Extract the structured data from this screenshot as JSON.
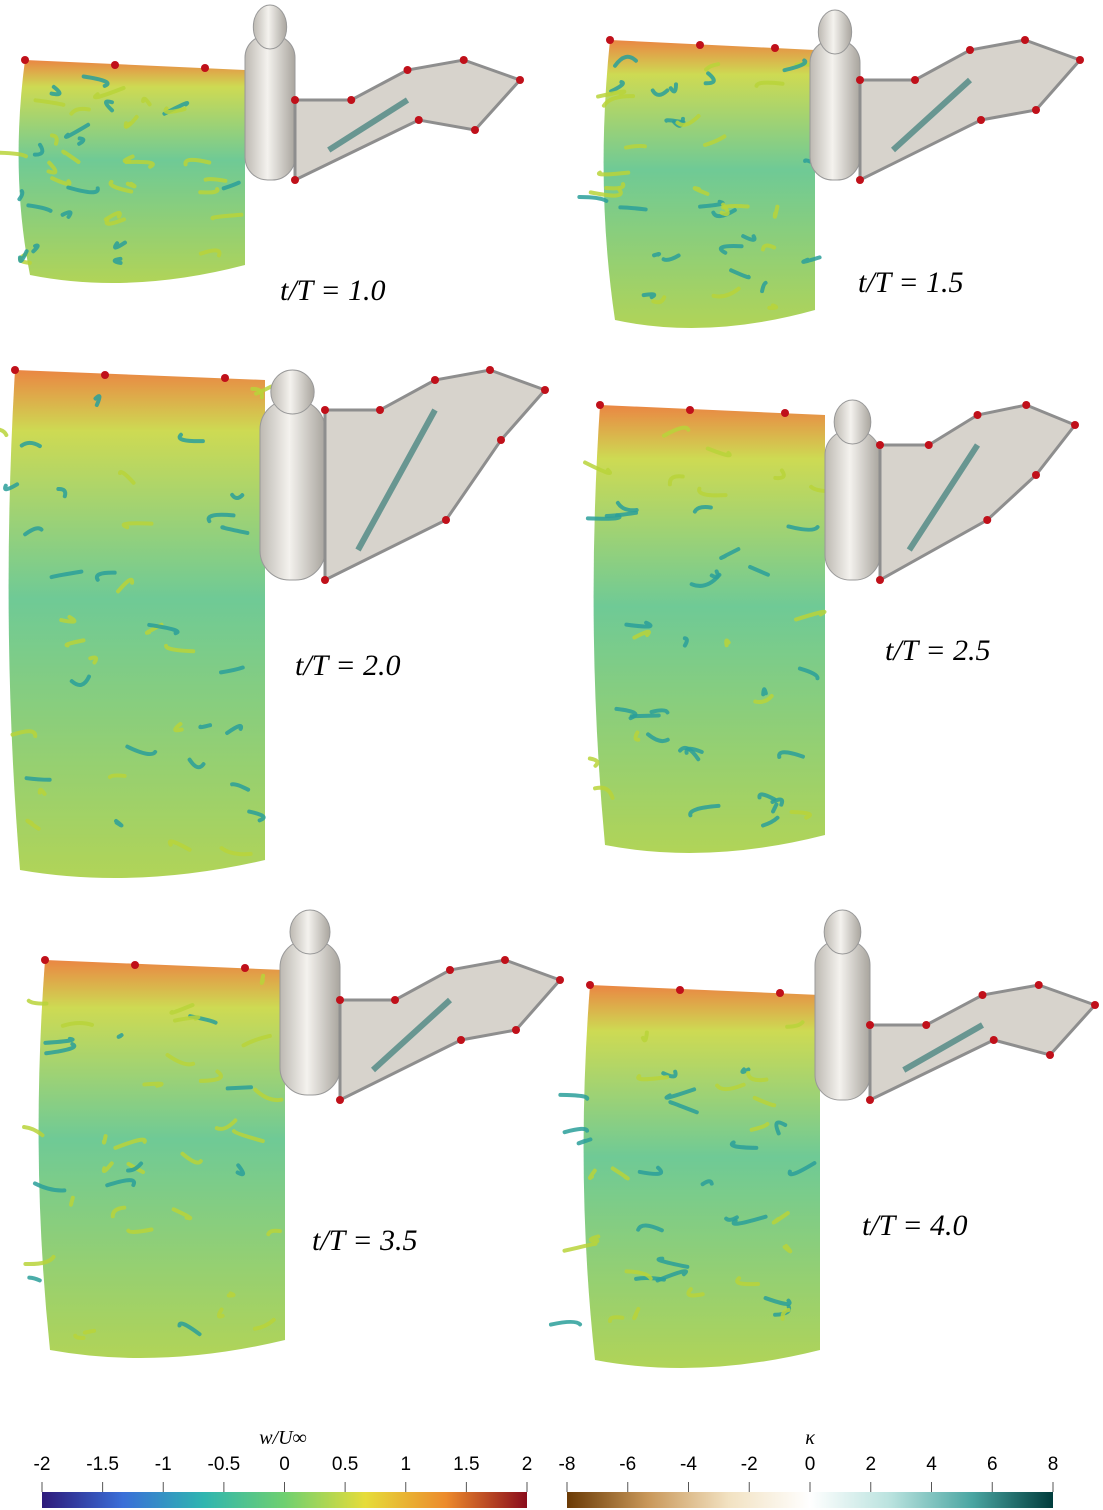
{
  "panels": [
    {
      "label": "t/T = 1.0"
    },
    {
      "label": "t/T = 1.5"
    },
    {
      "label": "t/T = 2.0"
    },
    {
      "label": "t/T = 2.5"
    },
    {
      "label": "t/T = 3.5"
    },
    {
      "label": "t/T = 4.0"
    }
  ],
  "colorbars": [
    {
      "title": "w/U∞",
      "lim": [
        -2,
        2
      ],
      "ticks": [
        -2,
        -1.5,
        -1,
        -0.5,
        0,
        0.5,
        1,
        1.5,
        2
      ],
      "colors": [
        "#2e1a7a",
        "#3a6fd8",
        "#2fb5b0",
        "#6fd070",
        "#e6dc3a",
        "#ec8a2c",
        "#8a0c1c"
      ]
    },
    {
      "title": "κ",
      "lim": [
        -8,
        8
      ],
      "ticks": [
        -8,
        -6,
        -4,
        -2,
        0,
        2,
        4,
        6,
        8
      ],
      "colors": [
        "#6a3a05",
        "#c9985a",
        "#f2e2c2",
        "#ffffff",
        "#b9e2de",
        "#4aa6a2",
        "#003c3c"
      ]
    }
  ]
}
